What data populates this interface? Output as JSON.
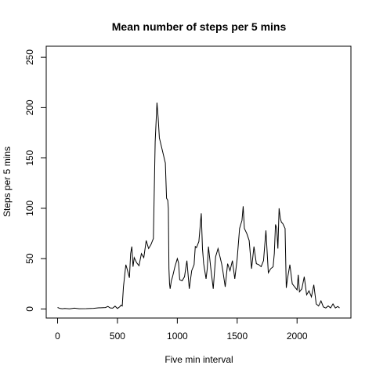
{
  "chart_data": {
    "type": "line",
    "title": "Mean number of steps per 5 mins",
    "xlabel": "Five min interval",
    "ylabel": "Steps per 5 mins",
    "xlim": [
      -95,
      2450
    ],
    "ylim": [
      -9,
      261
    ],
    "x_ticks": [
      0,
      500,
      1000,
      1500,
      2000
    ],
    "y_ticks": [
      0,
      50,
      100,
      150,
      200,
      250
    ],
    "grid": false,
    "legend": "none",
    "line_color": "#000000",
    "series": [
      {
        "x": [
          0,
          20,
          40,
          60,
          100,
          140,
          180,
          240,
          300,
          340,
          400,
          420,
          440,
          460,
          480,
          500,
          520,
          530,
          540,
          550,
          570,
          580,
          600,
          610,
          620,
          630,
          640,
          660,
          680,
          700,
          720,
          740,
          760,
          780,
          800,
          815,
          830,
          840,
          845,
          850,
          860,
          880,
          900,
          910,
          920,
          925,
          930,
          935,
          940,
          950,
          960,
          980,
          1000,
          1010,
          1020,
          1040,
          1060,
          1080,
          1100,
          1120,
          1140,
          1150,
          1160,
          1180,
          1200,
          1210,
          1220,
          1240,
          1250,
          1260,
          1280,
          1300,
          1320,
          1340,
          1360,
          1370,
          1380,
          1400,
          1420,
          1440,
          1460,
          1480,
          1500,
          1520,
          1540,
          1550,
          1560,
          1580,
          1600,
          1620,
          1640,
          1660,
          1680,
          1700,
          1720,
          1740,
          1760,
          1780,
          1800,
          1810,
          1820,
          1830,
          1840,
          1850,
          1860,
          1870,
          1880,
          1900,
          1910,
          1920,
          1940,
          1960,
          1980,
          2000,
          2010,
          2020,
          2040,
          2060,
          2080,
          2100,
          2120,
          2140,
          2160,
          2180,
          2200,
          2220,
          2240,
          2260,
          2280,
          2300,
          2320,
          2340,
          2355
        ],
        "y": [
          1.5,
          0.5,
          0.2,
          0.5,
          0.1,
          0.8,
          0.2,
          0.3,
          0.6,
          1.1,
          1.4,
          2.5,
          1.0,
          0.8,
          2.8,
          0.5,
          2.3,
          3.8,
          3.0,
          22,
          44,
          40,
          31,
          55,
          62,
          42,
          51,
          46,
          43,
          55,
          51,
          68,
          60,
          64,
          70,
          166,
          205,
          190,
          180,
          170,
          165,
          155,
          145,
          110,
          108,
          100,
          40,
          25,
          20,
          28,
          32,
          42,
          50,
          46,
          29,
          28,
          32,
          48,
          20,
          38,
          44,
          62,
          61,
          67,
          95,
          60,
          45,
          30,
          40,
          62,
          40,
          20,
          52,
          60,
          50,
          45,
          38,
          22,
          45,
          38,
          48,
          30,
          50,
          80,
          88,
          102,
          80,
          75,
          68,
          40,
          62,
          45,
          44,
          42,
          48,
          78,
          36,
          40,
          42,
          55,
          84,
          80,
          60,
          100,
          90,
          86,
          85,
          80,
          21,
          30,
          44,
          25,
          22,
          19,
          34,
          17,
          20,
          32,
          14,
          18,
          12,
          24,
          5,
          3,
          8,
          2,
          1,
          3,
          1,
          5,
          1,
          2.5,
          1
        ]
      }
    ]
  }
}
